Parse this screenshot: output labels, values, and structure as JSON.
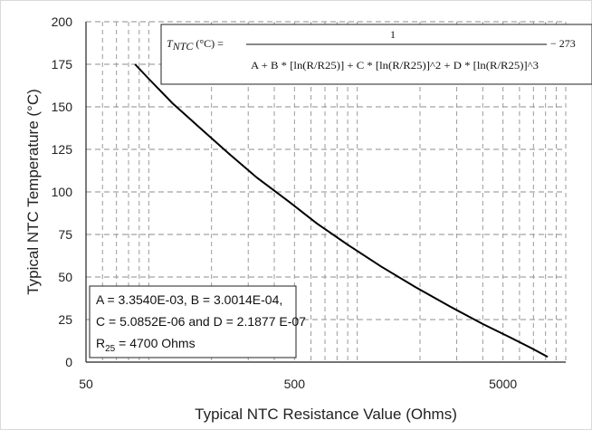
{
  "chart_data": {
    "type": "line",
    "xlabel": "Typical NTC Resistance Value (Ohms)",
    "ylabel": "Typical NTC Temperature (°C)",
    "xscale": "log",
    "xlim": [
      50,
      10000
    ],
    "ylim": [
      0,
      200
    ],
    "x_ticks": [
      "50",
      "500",
      "5000"
    ],
    "y_ticks": [
      "0",
      "25",
      "50",
      "75",
      "100",
      "125",
      "150",
      "175",
      "200"
    ],
    "grid": "dashed",
    "series": [
      {
        "x": [
          86,
          100,
          130,
          175,
          240,
          330,
          470,
          640,
          900,
          1300,
          1900,
          2800,
          4000,
          5400,
          7000,
          8200
        ],
        "y": [
          175,
          166.5,
          152.1,
          137.9,
          122.9,
          108.4,
          94.3,
          81.5,
          69.0,
          56.2,
          44.1,
          32.5,
          22.4,
          14.6,
          7.6,
          3.1
        ]
      }
    ],
    "equation": {
      "lhs": "T",
      "lhs_sub": "NTC",
      "lhs_unit": "(°C) =",
      "numerator": "1",
      "denominator": "A + B * [ln(R/R25)] + C * [ln(R/R25)]^2 + D * [ln(R/R25)]^3",
      "offset": "− 273"
    },
    "annotation": {
      "line1": "A = 3.3540E-03, B = 3.0014E-04,",
      "line2": "C = 5.0852E-06 and D = 2.1877 E-07",
      "line3_pre": "R",
      "line3_sub": "25",
      "line3_post": " = 4700 Ohms"
    }
  }
}
